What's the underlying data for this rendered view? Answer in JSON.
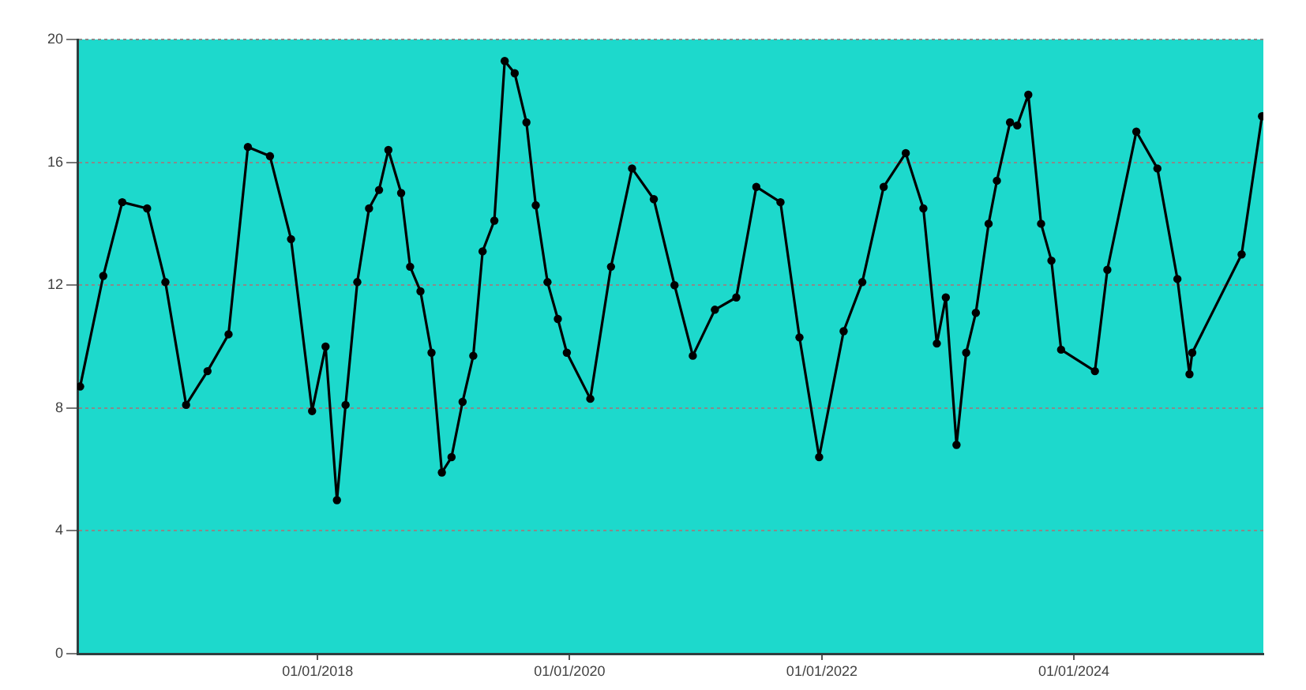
{
  "chart_data": {
    "type": "line",
    "x": [
      "2016-02-13",
      "2016-04-20",
      "2016-06-14",
      "2016-08-25",
      "2016-10-17",
      "2016-12-16",
      "2017-02-16",
      "2017-04-18",
      "2017-06-13",
      "2017-08-16",
      "2017-10-16",
      "2017-12-16",
      "2018-01-24",
      "2018-02-26",
      "2018-03-23",
      "2018-04-26",
      "2018-05-30",
      "2018-06-28",
      "2018-07-25",
      "2018-08-31",
      "2018-09-26",
      "2018-10-26",
      "2018-11-27",
      "2018-12-27",
      "2019-01-24",
      "2019-02-25",
      "2019-03-28",
      "2019-04-24",
      "2019-05-28",
      "2019-06-27",
      "2019-07-26",
      "2019-08-29",
      "2019-09-25",
      "2019-10-29",
      "2019-11-28",
      "2019-12-24",
      "2020-03-01",
      "2020-04-30",
      "2020-06-30",
      "2020-09-01",
      "2020-10-31",
      "2020-12-23",
      "2021-02-25",
      "2021-04-28",
      "2021-06-25",
      "2021-09-03",
      "2021-10-28",
      "2021-12-24",
      "2022-03-05",
      "2022-04-28",
      "2022-06-29",
      "2022-09-01",
      "2022-10-22",
      "2022-11-30",
      "2022-12-26",
      "2023-01-26",
      "2023-02-23",
      "2023-03-23",
      "2023-04-29",
      "2023-05-23",
      "2023-06-30",
      "2023-07-21",
      "2023-08-22",
      "2023-09-28",
      "2023-10-28",
      "2023-11-25",
      "2024-03-02",
      "2024-04-07",
      "2024-06-30",
      "2024-08-30",
      "2024-10-27",
      "2024-12-01",
      "2024-12-09",
      "2025-05-01",
      "2025-06-29"
    ],
    "values": [
      8.7,
      12.3,
      14.7,
      14.5,
      12.1,
      8.1,
      9.2,
      10.4,
      16.5,
      16.2,
      13.5,
      7.9,
      10.0,
      5.0,
      8.1,
      12.1,
      14.5,
      15.1,
      16.4,
      15.0,
      12.6,
      11.8,
      9.8,
      5.9,
      6.4,
      8.2,
      9.7,
      13.1,
      14.1,
      19.3,
      18.9,
      17.3,
      14.6,
      12.1,
      10.9,
      9.8,
      8.3,
      12.6,
      15.8,
      14.8,
      12.0,
      9.7,
      11.2,
      11.6,
      15.2,
      14.7,
      10.3,
      6.4,
      10.5,
      12.1,
      15.2,
      16.3,
      14.5,
      10.1,
      11.6,
      6.8,
      9.8,
      11.1,
      14.0,
      15.4,
      17.3,
      17.2,
      18.2,
      14.0,
      12.8,
      9.9,
      9.2,
      12.5,
      17.0,
      15.8,
      12.2,
      9.1,
      9.8,
      13.0,
      17.5
    ],
    "color": "#000000",
    "xlim": [
      "2016-02-05",
      "2025-07-03"
    ],
    "xticks": [
      {
        "value": "2018-01-01",
        "label": "01/01/2018"
      },
      {
        "value": "2020-01-01",
        "label": "01/01/2020"
      },
      {
        "value": "2022-01-01",
        "label": "01/01/2022"
      },
      {
        "value": "2024-01-01",
        "label": "01/01/2024"
      }
    ],
    "ylim": [
      0,
      20
    ],
    "yticks": [
      0,
      4,
      8,
      12,
      16,
      20
    ],
    "grid": "y",
    "legend": false,
    "marker": "circle",
    "line_style": "solid"
  }
}
